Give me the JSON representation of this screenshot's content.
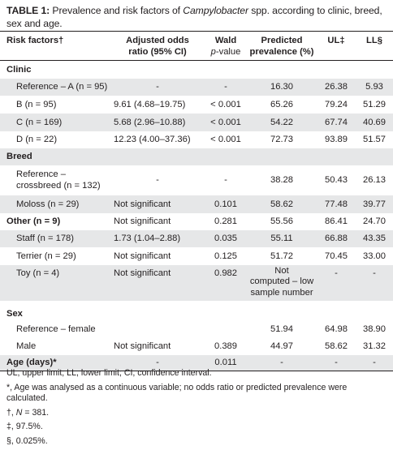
{
  "caption": {
    "label": "TABLE 1:",
    "text_before": " Prevalence and risk factors of ",
    "italic": "Campylobacter",
    "text_after": " spp. according to clinic, breed, sex and age."
  },
  "header": {
    "risk": "Risk factors†",
    "or_line1": "Adjusted odds",
    "or_line2": "ratio (95% CI)",
    "wald_line1": "Wald",
    "wald_p": "p",
    "wald_rest": "-value",
    "pred_line1": "Predicted",
    "pred_line2": "prevalence (%)",
    "ul": "UL‡",
    "ll": "LL§"
  },
  "rows": [
    {
      "label": "Clinic",
      "or": "",
      "p": "",
      "pred": "",
      "ul": "",
      "ll": ""
    },
    {
      "label": "Reference – A (n = 95)",
      "or": "-",
      "p": "-",
      "pred": "16.30",
      "ul": "26.38",
      "ll": "5.93"
    },
    {
      "label": "B (n = 95)",
      "or": "9.61 (4.68–19.75)",
      "p": "< 0.001",
      "pred": "65.26",
      "ul": "79.24",
      "ll": "51.29"
    },
    {
      "label": "C (n = 169)",
      "or": "5.68 (2.96–10.88)",
      "p": "< 0.001",
      "pred": "54.22",
      "ul": "67.74",
      "ll": "40.69"
    },
    {
      "label": "D (n = 22)",
      "or": "12.23 (4.00–37.36)",
      "p": "< 0.001",
      "pred": "72.73",
      "ul": "93.89",
      "ll": "51.57"
    },
    {
      "label": "Breed",
      "or": "",
      "p": "",
      "pred": "",
      "ul": "",
      "ll": ""
    },
    {
      "label_line1": "Reference –",
      "label_line2": "crossbreed (n = 132)",
      "or": "-",
      "p": "-",
      "pred": "38.28",
      "ul": "50.43",
      "ll": "26.13"
    },
    {
      "label": "Moloss (n = 29)",
      "or": "Not significant",
      "p": "0.101",
      "pred": "58.62",
      "ul": "77.48",
      "ll": "39.77"
    },
    {
      "label": "Other (n = 9)",
      "or": "Not significant",
      "p": "0.281",
      "pred": "55.56",
      "ul": "86.41",
      "ll": "24.70"
    },
    {
      "label": "Staff (n = 178)",
      "or": "1.73 (1.04–2.88)",
      "p": "0.035",
      "pred": "55.11",
      "ul": "66.88",
      "ll": "43.35"
    },
    {
      "label": "Terrier (n = 29)",
      "or": "Not significant",
      "p": "0.125",
      "pred": "51.72",
      "ul": "70.45",
      "ll": "33.00"
    },
    {
      "label": "Toy (n = 4)",
      "or": "Not significant",
      "p": "0.982",
      "pred_line1": "Not",
      "pred_line2": "computed – low",
      "pred_line3": "sample number",
      "ul": "-",
      "ll": "-"
    },
    {
      "label": "Sex",
      "or": "",
      "p": "",
      "pred": "",
      "ul": "",
      "ll": ""
    },
    {
      "label": "Reference – female",
      "or": "",
      "p": "",
      "pred": "51.94",
      "ul": "64.98",
      "ll": "38.90"
    },
    {
      "label": "Male",
      "or": "Not significant",
      "p": "0.389",
      "pred": "44.97",
      "ul": "58.62",
      "ll": "31.32"
    },
    {
      "label": "Age (days)*",
      "or": "-",
      "p": "0.011",
      "pred": "-",
      "ul": "-",
      "ll": "-"
    }
  ],
  "notes": {
    "abbrev": "UL, upper limit; LL, lower limit; CI, confidence interval.",
    "age": "*, Age was analysed as a continuous variable; no odds ratio or predicted prevalence were calculated.",
    "dagger_pre": "†, ",
    "dagger_n": "N",
    "dagger_post": " = 381.",
    "ddagger": "‡, 97.5%.",
    "section": "§, 0.025%."
  }
}
